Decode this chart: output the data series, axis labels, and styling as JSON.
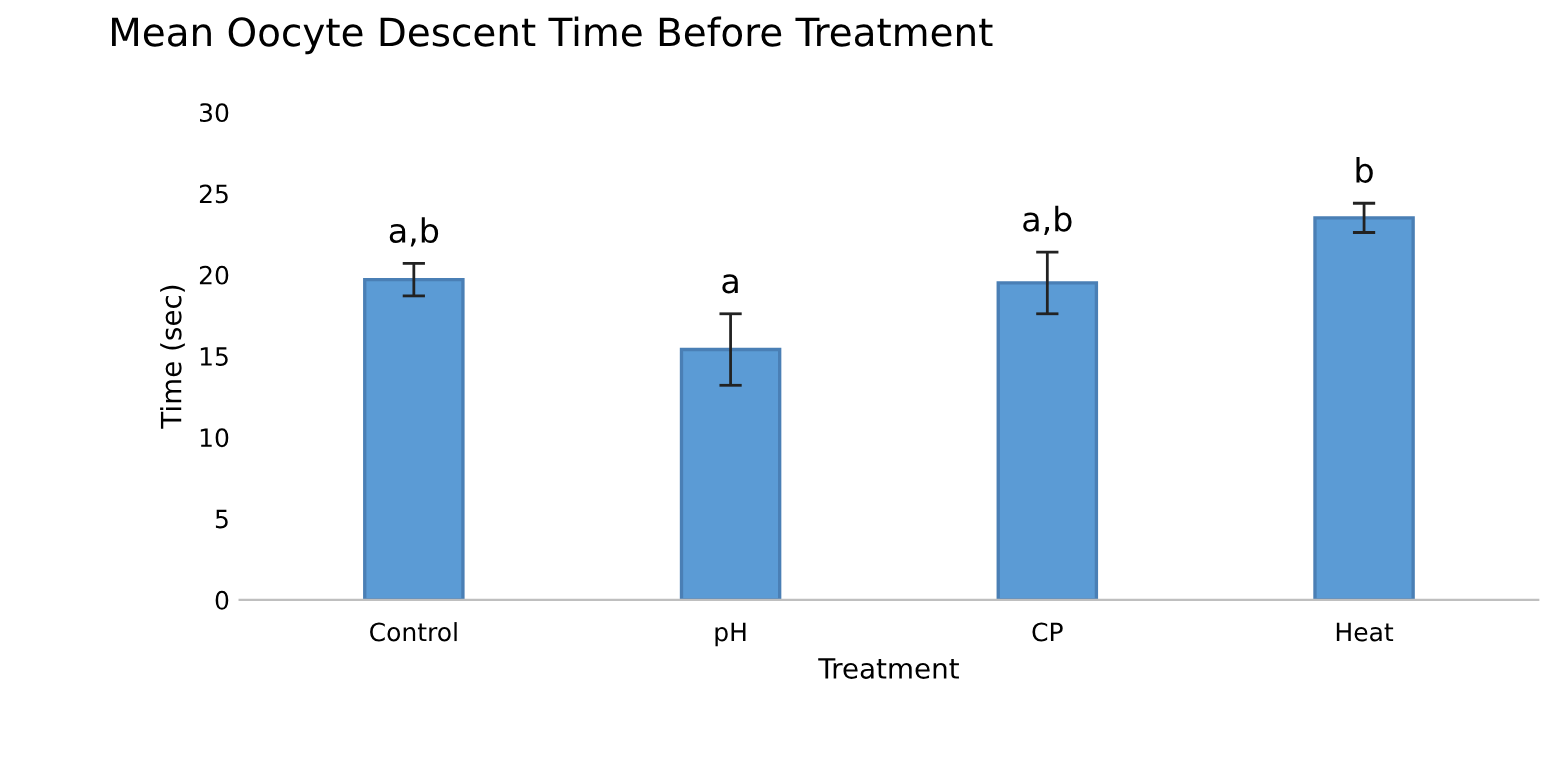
{
  "chart_data": {
    "type": "bar",
    "title": "Mean Oocyte Descent Time Before Treatment",
    "xlabel": "Treatment",
    "ylabel": "Time (sec)",
    "categories": [
      "Control",
      "pH",
      "CP",
      "Heat"
    ],
    "values": [
      19.7,
      15.4,
      19.5,
      23.5
    ],
    "errors": [
      1.0,
      2.2,
      1.9,
      0.9
    ],
    "color": "#5b9bd5",
    "ylim": [
      0,
      30
    ],
    "yticks": [
      0,
      5,
      10,
      15,
      20,
      25,
      30
    ],
    "grid": false,
    "annotations": [
      {
        "text": "a,b",
        "x": "Control",
        "y": 20.7
      },
      {
        "text": "a",
        "x": "pH",
        "y": 17.6
      },
      {
        "text": "a,b",
        "x": "CP",
        "y": 21.4
      },
      {
        "text": "b",
        "x": "Heat",
        "y": 24.4
      }
    ]
  }
}
